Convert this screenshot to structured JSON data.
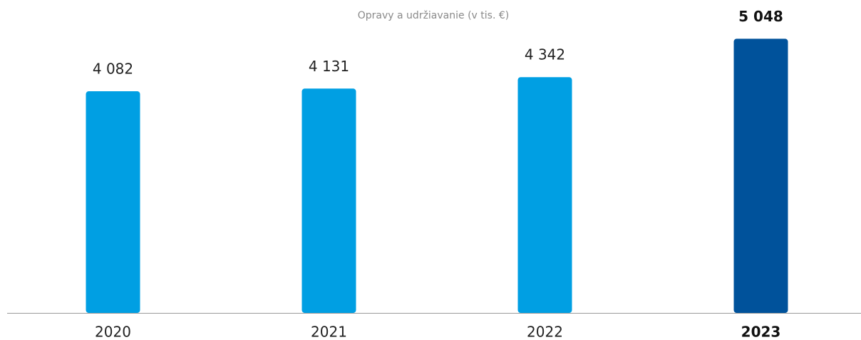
{
  "chart_data": {
    "type": "bar",
    "title": "Opravy a udržiavanie (v tis. €)",
    "categories": [
      "2020",
      "2021",
      "2022",
      "2023"
    ],
    "values": [
      4082,
      4131,
      4342,
      5048
    ],
    "value_labels": [
      "4 082",
      "4 131",
      "4 342",
      "5 048"
    ],
    "colors": [
      "#009fe3",
      "#009fe3",
      "#009fe3",
      "#00529b"
    ],
    "ylim": [
      0,
      5500
    ]
  }
}
